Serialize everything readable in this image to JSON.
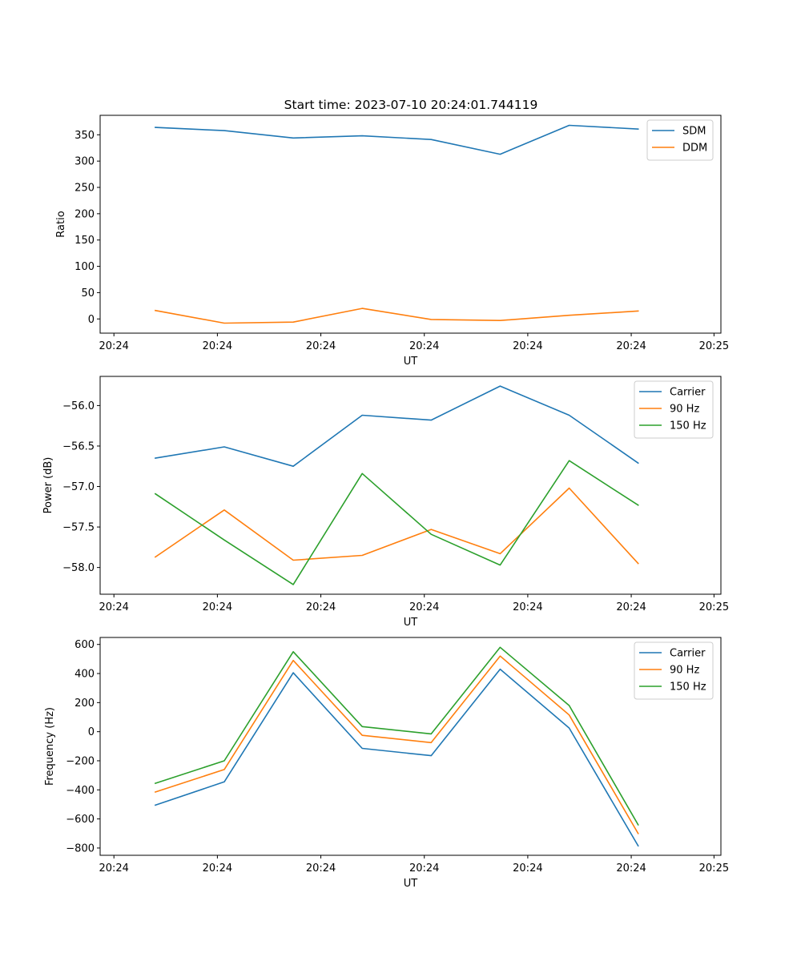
{
  "figure": {
    "title": "Start time: 2023-07-10 20:24:01.744119"
  },
  "chart_data": [
    {
      "type": "line",
      "title": "Start time: 2023-07-10 20:24:01.744119",
      "xlabel": "UT",
      "ylabel": "Ratio",
      "x": [
        1,
        2,
        3,
        4,
        5,
        6,
        7,
        8
      ],
      "xlim": [
        0.2,
        9.2
      ],
      "xticks": [
        0.4,
        1.9,
        3.4,
        4.9,
        6.4,
        7.9,
        9.1
      ],
      "xtick_labels": [
        "20:24",
        "20:24",
        "20:24",
        "20:24",
        "20:24",
        "20:24",
        "20:25"
      ],
      "ylim": [
        -27,
        387
      ],
      "yticks": [
        0,
        50,
        100,
        150,
        200,
        250,
        300,
        350
      ],
      "ytick_labels": [
        "0",
        "50",
        "100",
        "150",
        "200",
        "250",
        "300",
        "350"
      ],
      "legend": "top-right",
      "series": [
        {
          "name": "SDM",
          "color": "#1f77b4",
          "values": [
            364,
            358,
            344,
            348,
            341,
            313,
            368,
            361
          ]
        },
        {
          "name": "DDM",
          "color": "#ff7f0e",
          "values": [
            16,
            -8,
            -6,
            20,
            -1,
            -3,
            7,
            15
          ]
        }
      ]
    },
    {
      "type": "line",
      "xlabel": "UT",
      "ylabel": "Power (dB)",
      "x": [
        1,
        2,
        3,
        4,
        5,
        6,
        7,
        8
      ],
      "xlim": [
        0.2,
        9.2
      ],
      "xticks": [
        0.4,
        1.9,
        3.4,
        4.9,
        6.4,
        7.9,
        9.1
      ],
      "xtick_labels": [
        "20:24",
        "20:24",
        "20:24",
        "20:24",
        "20:24",
        "20:24",
        "20:25"
      ],
      "ylim": [
        -58.33,
        -55.64
      ],
      "yticks": [
        -58.0,
        -57.5,
        -57.0,
        -56.5,
        -56.0
      ],
      "ytick_labels": [
        "−58.0",
        "−57.5",
        "−57.0",
        "−56.5",
        "−56.0"
      ],
      "legend": "top-right",
      "series": [
        {
          "name": "Carrier",
          "color": "#1f77b4",
          "values": [
            -56.65,
            -56.51,
            -56.75,
            -56.12,
            -56.18,
            -55.76,
            -56.12,
            -56.71
          ]
        },
        {
          "name": "90 Hz",
          "color": "#ff7f0e",
          "values": [
            -57.87,
            -57.29,
            -57.91,
            -57.85,
            -57.53,
            -57.83,
            -57.02,
            -57.95
          ]
        },
        {
          "name": "150 Hz",
          "color": "#2ca02c",
          "values": [
            -57.09,
            -57.66,
            -58.21,
            -56.84,
            -57.59,
            -57.97,
            -56.68,
            -57.23
          ]
        }
      ]
    },
    {
      "type": "line",
      "xlabel": "UT",
      "ylabel": "Frequency (Hz)",
      "x": [
        1,
        2,
        3,
        4,
        5,
        6,
        7,
        8
      ],
      "xlim": [
        0.2,
        9.2
      ],
      "xticks": [
        0.4,
        1.9,
        3.4,
        4.9,
        6.4,
        7.9,
        9.1
      ],
      "xtick_labels": [
        "20:24",
        "20:24",
        "20:24",
        "20:24",
        "20:24",
        "20:24",
        "20:25"
      ],
      "ylim": [
        -850,
        648
      ],
      "yticks": [
        -800,
        -600,
        -400,
        -200,
        0,
        200,
        400,
        600
      ],
      "ytick_labels": [
        "−800",
        "−600",
        "−400",
        "−200",
        "0",
        "200",
        "400",
        "600"
      ],
      "legend": "top-right",
      "series": [
        {
          "name": "Carrier",
          "color": "#1f77b4",
          "values": [
            -505,
            -345,
            405,
            -115,
            -165,
            430,
            25,
            -785
          ]
        },
        {
          "name": "90 Hz",
          "color": "#ff7f0e",
          "values": [
            -415,
            -260,
            490,
            -25,
            -75,
            520,
            115,
            -700
          ]
        },
        {
          "name": "150 Hz",
          "color": "#2ca02c",
          "values": [
            -355,
            -200,
            550,
            35,
            -15,
            580,
            180,
            -640
          ]
        }
      ]
    }
  ]
}
